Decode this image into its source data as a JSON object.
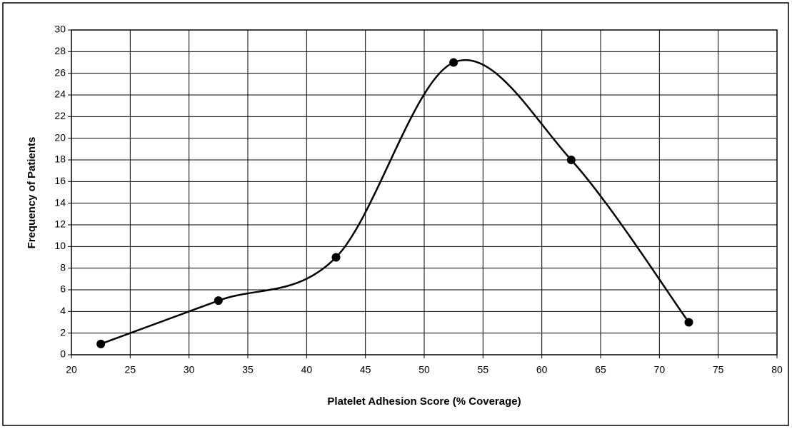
{
  "chart_data": {
    "type": "line",
    "x_label": "Platelet Adhesion Score (% Coverage)",
    "y_label": "Frequency of Patients",
    "series": [
      {
        "x": [
          22.5,
          32.5,
          42.5,
          52.5,
          62.5,
          72.5
        ],
        "values": [
          1,
          5,
          9,
          27,
          18,
          3
        ],
        "color": "#000000"
      }
    ],
    "smooth": true,
    "markers": true,
    "grid": true,
    "xlim": [
      20,
      80
    ],
    "xticks": [
      20,
      25,
      30,
      35,
      40,
      45,
      50,
      55,
      60,
      65,
      70,
      75,
      80
    ],
    "ylim": [
      0,
      30
    ],
    "yticks": [
      0,
      2,
      4,
      6,
      8,
      10,
      12,
      14,
      16,
      18,
      20,
      22,
      24,
      26,
      28,
      30
    ]
  }
}
